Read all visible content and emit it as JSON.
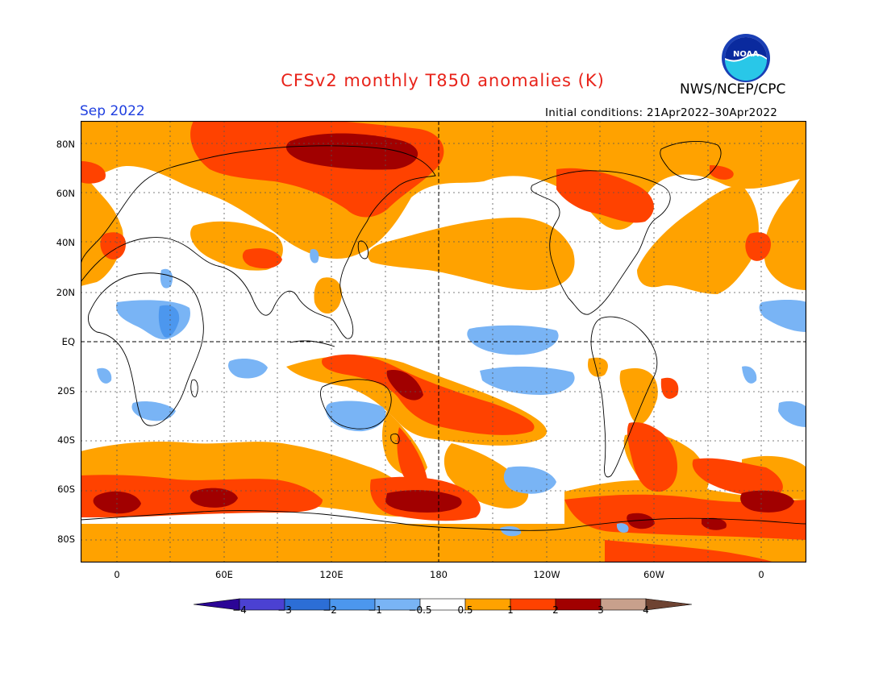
{
  "header": {
    "title": "CFSv2 monthly T850 anomalies (K)",
    "target_month": "Sep 2022",
    "agency": "NWS/NCEP/CPC",
    "initial_conditions": "Initial conditions: 21Apr2022–30Apr2022",
    "logo_text": "NOAA"
  },
  "map": {
    "lat_labels": [
      "80N",
      "60N",
      "40N",
      "20N",
      "EQ",
      "20S",
      "40S",
      "60S",
      "80S"
    ],
    "lon_labels": [
      "0",
      "60E",
      "120E",
      "180",
      "120W",
      "60W",
      "0"
    ],
    "gridlines": "dotted, every 30° latitude and 30° longitude; equator and 180° dashed"
  },
  "legend": {
    "unit": "K",
    "ticks": [
      "−4",
      "−3",
      "−2",
      "−1",
      "−0.5",
      "0.5",
      "1",
      "2",
      "3",
      "4"
    ],
    "colors": [
      "#2b0596",
      "#4b41d2",
      "#2c6ed6",
      "#4c97ee",
      "#79b4f5",
      "#ffffff",
      "#ffa200",
      "#ff4200",
      "#a10000",
      "#c8a08c",
      "#6e4332"
    ]
  }
}
